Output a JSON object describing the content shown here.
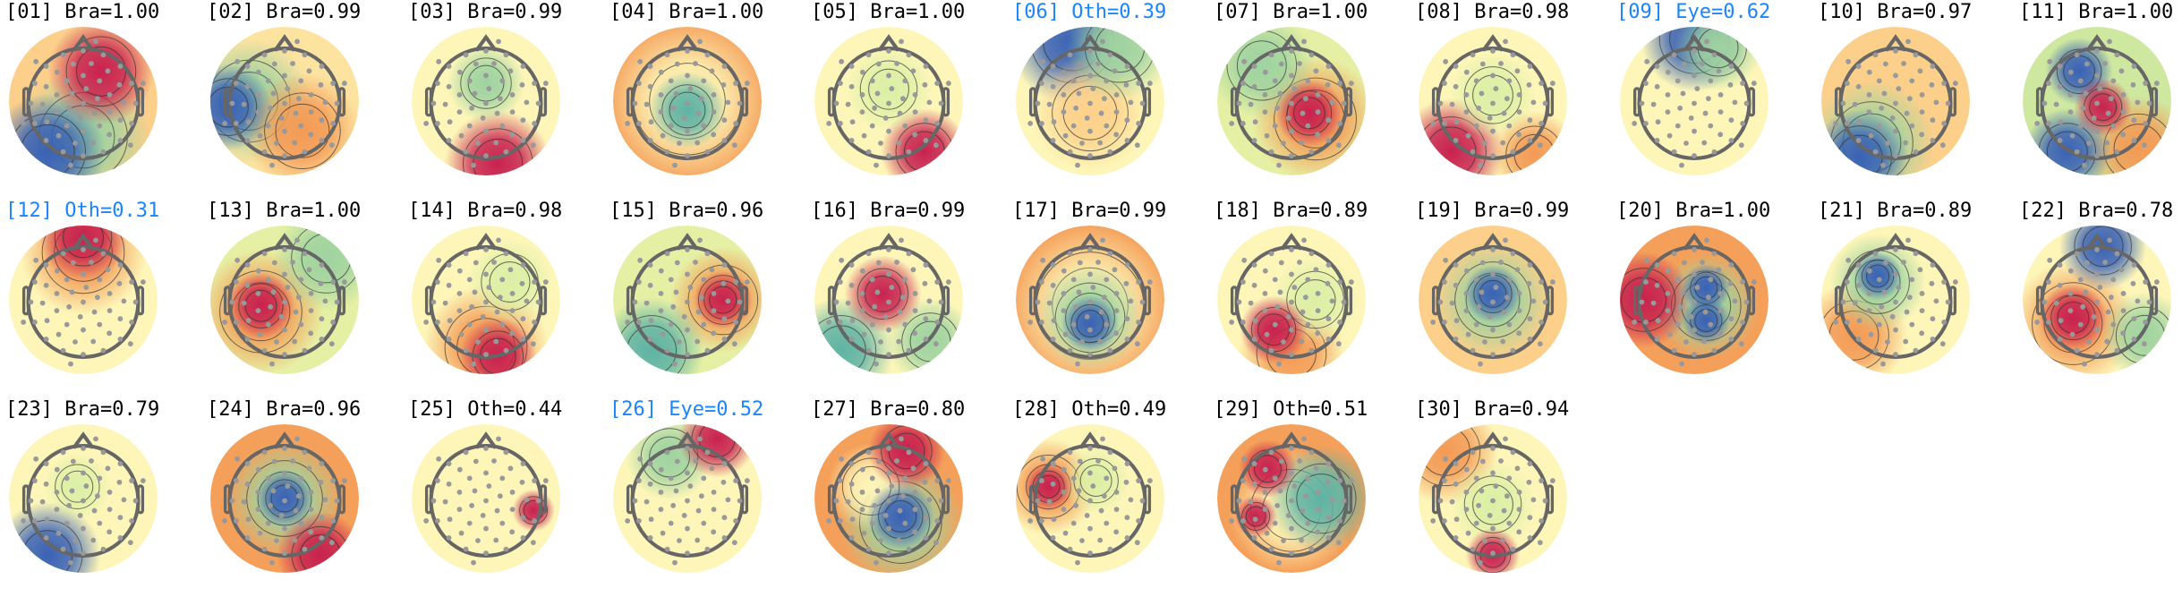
{
  "colors": {
    "label_default": "#000000",
    "label_highlight": "#1a85ff",
    "head_outline": "#666666",
    "electrode": "#999999"
  },
  "colormap": "Spectral_r (blue-green-yellow-orange-red)",
  "components": [
    {
      "title": "[01] Bra=1.00",
      "highlight": false
    },
    {
      "title": "[02] Bra=0.99",
      "highlight": false
    },
    {
      "title": "[03] Bra=0.99",
      "highlight": false
    },
    {
      "title": "[04] Bra=1.00",
      "highlight": false
    },
    {
      "title": "[05] Bra=1.00",
      "highlight": false
    },
    {
      "title": "[06] Oth=0.39",
      "highlight": true
    },
    {
      "title": "[07] Bra=1.00",
      "highlight": false
    },
    {
      "title": "[08] Bra=0.98",
      "highlight": false
    },
    {
      "title": "[09] Eye=0.62",
      "highlight": true
    },
    {
      "title": "[10] Bra=0.97",
      "highlight": false
    },
    {
      "title": "[11] Bra=1.00",
      "highlight": false
    },
    {
      "title": "[12] Oth=0.31",
      "highlight": true
    },
    {
      "title": "[13] Bra=1.00",
      "highlight": false
    },
    {
      "title": "[14] Bra=0.98",
      "highlight": false
    },
    {
      "title": "[15] Bra=0.96",
      "highlight": false
    },
    {
      "title": "[16] Bra=0.99",
      "highlight": false
    },
    {
      "title": "[17] Bra=0.99",
      "highlight": false
    },
    {
      "title": "[18] Bra=0.89",
      "highlight": false
    },
    {
      "title": "[19] Bra=0.99",
      "highlight": false
    },
    {
      "title": "[20] Bra=1.00",
      "highlight": false
    },
    {
      "title": "[21] Bra=0.89",
      "highlight": false
    },
    {
      "title": "[22] Bra=0.78",
      "highlight": false
    },
    {
      "title": "[23] Bra=0.79",
      "highlight": false
    },
    {
      "title": "[24] Bra=0.96",
      "highlight": false
    },
    {
      "title": "[25] Oth=0.44",
      "highlight": false
    },
    {
      "title": "[26] Eye=0.52",
      "highlight": true
    },
    {
      "title": "[27] Bra=0.80",
      "highlight": false
    },
    {
      "title": "[28] Oth=0.49",
      "highlight": false
    },
    {
      "title": "[29] Oth=0.51",
      "highlight": false
    },
    {
      "title": "[30] Bra=0.94",
      "highlight": false
    }
  ]
}
